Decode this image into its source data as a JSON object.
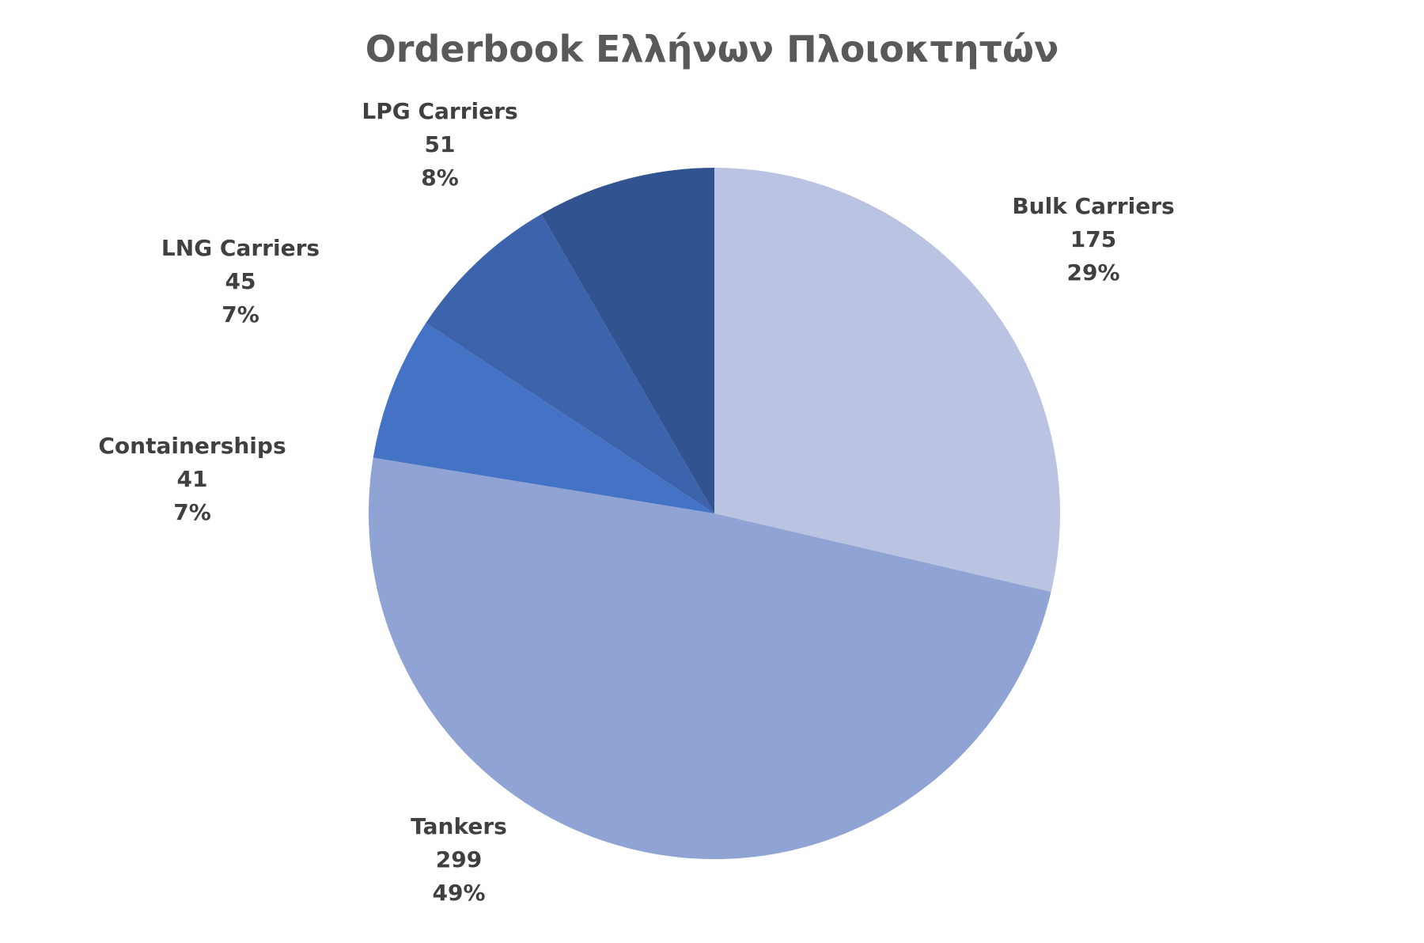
{
  "chart_data": {
    "type": "pie",
    "title": "Orderbook Ελλήνων Πλοιοκτητών",
    "start_angle": "12 o'clock",
    "direction": "clockwise",
    "slices": [
      {
        "label": "Bulk Carriers",
        "value": 175,
        "percent_label": "29%",
        "value_label": "175",
        "color": "#BAC4E2"
      },
      {
        "label": "Tankers",
        "value": 299,
        "percent_label": "49%",
        "value_label": "299",
        "color": "#8FA3D4"
      },
      {
        "label": "Containerships",
        "value": 41,
        "percent_label": "7%",
        "value_label": "41",
        "color": "#4472C4"
      },
      {
        "label": "LNG Carriers",
        "value": 45,
        "percent_label": "7%",
        "value_label": "45",
        "color": "#3C63AC"
      },
      {
        "label": "LPG Carriers",
        "value": 51,
        "percent_label": "8%",
        "value_label": "51",
        "color": "#315490"
      }
    ],
    "legend": "none",
    "data_labels": "outside, category name / value / percentage"
  }
}
